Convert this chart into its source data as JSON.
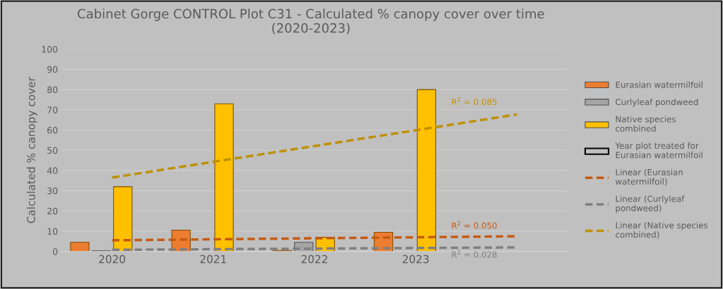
{
  "chart_data": {
    "type": "bar",
    "title": "Cabinet Gorge CONTROL Plot C31 - Calculated % canopy cover over time\n(2020-2023)",
    "ylabel": "Calculated % canopy cover",
    "categories": [
      "2020",
      "2021",
      "2022",
      "2023",
      null
    ],
    "series": [
      {
        "name": "Eurasian watermilfoil",
        "color": "#ed7d31",
        "values": [
          4.5,
          10.5,
          0.5,
          9.5,
          null
        ]
      },
      {
        "name": "Curlyleaf pondweed",
        "color": "#a5a5a5",
        "values": [
          0.3,
          null,
          4.5,
          null,
          null
        ]
      },
      {
        "name": "Native species combined",
        "color": "#ffc000",
        "values": [
          32,
          73,
          7,
          80,
          null
        ]
      },
      {
        "name": "Year plot treated for Eurasian watermilfoil",
        "color": "#000000",
        "values": [
          null,
          null,
          null,
          null,
          null
        ]
      },
      {
        "name": "Linear (Eurasian watermilfoil)",
        "type": "line",
        "color": "#c55a11",
        "line_style": "dashed",
        "values": [
          5.5,
          6.0,
          6.5,
          7.0,
          7.5
        ]
      },
      {
        "name": "Linear (Curlyleaf pondweed)",
        "type": "line",
        "color": "#7f7f7f",
        "line_style": "dashed",
        "values": [
          0.8,
          1.1,
          1.4,
          1.7,
          2.0
        ]
      },
      {
        "name": "Linear (Native species combined)",
        "type": "line",
        "color": "#bf9000",
        "line_style": "dashed",
        "values": [
          36.5,
          44.3,
          52.1,
          59.9,
          67.7
        ]
      }
    ],
    "annotations": [
      "R$^{2}$ = 0.050",
      "R$^{2}$ = 0.028",
      "R$^{2}$ = 0.085"
    ],
    "ylim": [
      0,
      100
    ],
    "yticks": [
      0,
      10,
      20,
      30,
      40,
      50,
      60,
      70,
      80,
      90,
      100
    ],
    "grid": "y",
    "legend": "right"
  }
}
